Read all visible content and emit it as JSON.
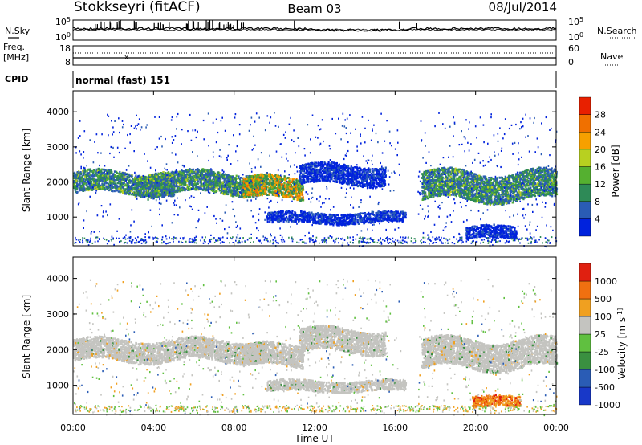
{
  "header": {
    "station": "Stokkseyri (fitACF)",
    "beam": "Beam 03",
    "date": "08/Jul/2014"
  },
  "noise_panel": {
    "left_label": "N.Sky",
    "right_label": "N.Search",
    "left_ticks": [
      "10^5",
      "10^0"
    ],
    "right_ticks": [
      "10^5",
      "10^0"
    ]
  },
  "freq_panel": {
    "left_label_1": "Freq.",
    "left_label_2": "[MHz]",
    "left_ticks": [
      "18",
      "8"
    ],
    "right_label": "Nave",
    "right_ticks": [
      "60",
      "0"
    ]
  },
  "cpid_panel": {
    "label": "CPID",
    "mode": "normal (fast) 151"
  },
  "chart_data": [
    {
      "type": "heatmap",
      "name": "power",
      "ylabel": "Slant Range [km]",
      "ylim": [
        180,
        4600
      ],
      "yticks": [
        1000,
        2000,
        3000,
        4000
      ],
      "xlim": [
        0,
        24
      ],
      "colorbar": {
        "label": "Power [dB]",
        "ticks": [
          "4",
          "8",
          "12",
          "16",
          "20",
          "24",
          "28"
        ],
        "colors": [
          "#0022dd",
          "#2a5cb5",
          "#2e8a57",
          "#55b030",
          "#b8d020",
          "#f6a000",
          "#f07000",
          "#e82000"
        ]
      },
      "bands": [
        {
          "t0": 0.0,
          "t1": 9.6,
          "r0": 1700,
          "r1": 2300,
          "level": "medium"
        },
        {
          "t0": 3.6,
          "t1": 5.0,
          "r0": 1500,
          "r1": 2200,
          "level": "medium"
        },
        {
          "t0": 8.4,
          "t1": 11.4,
          "r0": 1550,
          "r1": 2150,
          "level": "high"
        },
        {
          "t0": 9.6,
          "t1": 16.5,
          "r0": 850,
          "r1": 1150,
          "level": "low"
        },
        {
          "t0": 11.2,
          "t1": 15.5,
          "r0": 1950,
          "r1": 2500,
          "level": "low"
        },
        {
          "t0": 17.3,
          "t1": 24.0,
          "r0": 1500,
          "r1": 2300,
          "level": "medium"
        },
        {
          "t0": 19.5,
          "t1": 22.0,
          "r0": 400,
          "r1": 750,
          "level": "low"
        }
      ]
    },
    {
      "type": "heatmap",
      "name": "velocity",
      "xlabel": "Time UT",
      "ylabel": "Slant Range [km]",
      "ylim": [
        180,
        4600
      ],
      "yticks": [
        1000,
        2000,
        3000,
        4000
      ],
      "xlim": [
        0,
        24
      ],
      "xticks": [
        "00:00",
        "04:00",
        "08:00",
        "12:00",
        "16:00",
        "20:00",
        "00:00"
      ],
      "colorbar": {
        "label": "Velocity [m s^-1]",
        "ticks": [
          "1000",
          "500",
          "100",
          "25",
          "-25",
          "-100",
          "-500",
          "-1000"
        ],
        "colors": [
          "#1838c8",
          "#2a5cb5",
          "#3a9040",
          "#60c040",
          "#c4c4c0",
          "#f0a020",
          "#f07010",
          "#e02010"
        ]
      },
      "bands": [
        {
          "t0": 0.0,
          "t1": 9.6,
          "r0": 1700,
          "r1": 2300,
          "level": "ground"
        },
        {
          "t0": 8.4,
          "t1": 11.4,
          "r0": 1550,
          "r1": 2150,
          "level": "ground"
        },
        {
          "t0": 9.6,
          "t1": 16.5,
          "r0": 850,
          "r1": 1150,
          "level": "ground"
        },
        {
          "t0": 11.2,
          "t1": 15.5,
          "r0": 1950,
          "r1": 2600,
          "level": "ground"
        },
        {
          "t0": 17.3,
          "t1": 24.0,
          "r0": 1500,
          "r1": 2300,
          "level": "ground"
        },
        {
          "t0": 19.8,
          "t1": 22.2,
          "r0": 400,
          "r1": 700,
          "level": "away"
        }
      ]
    }
  ]
}
